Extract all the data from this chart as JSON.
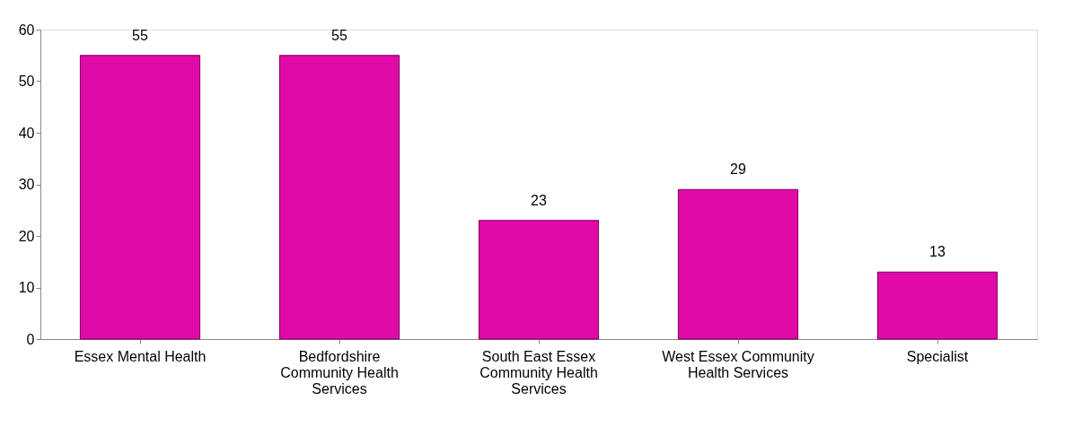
{
  "chart_data": {
    "type": "bar",
    "categories": [
      "Essex Mental Health",
      "Bedfordshire Community Health Services",
      "South East Essex Community Health Services",
      "West Essex Community Health Services",
      "Specialist"
    ],
    "values": [
      55,
      55,
      23,
      29,
      13
    ],
    "color": "#e00aa8",
    "ylim": [
      0,
      60
    ],
    "yticks": [
      0,
      10,
      20,
      30,
      40,
      50,
      60
    ],
    "grid": false,
    "data_labels": true
  }
}
